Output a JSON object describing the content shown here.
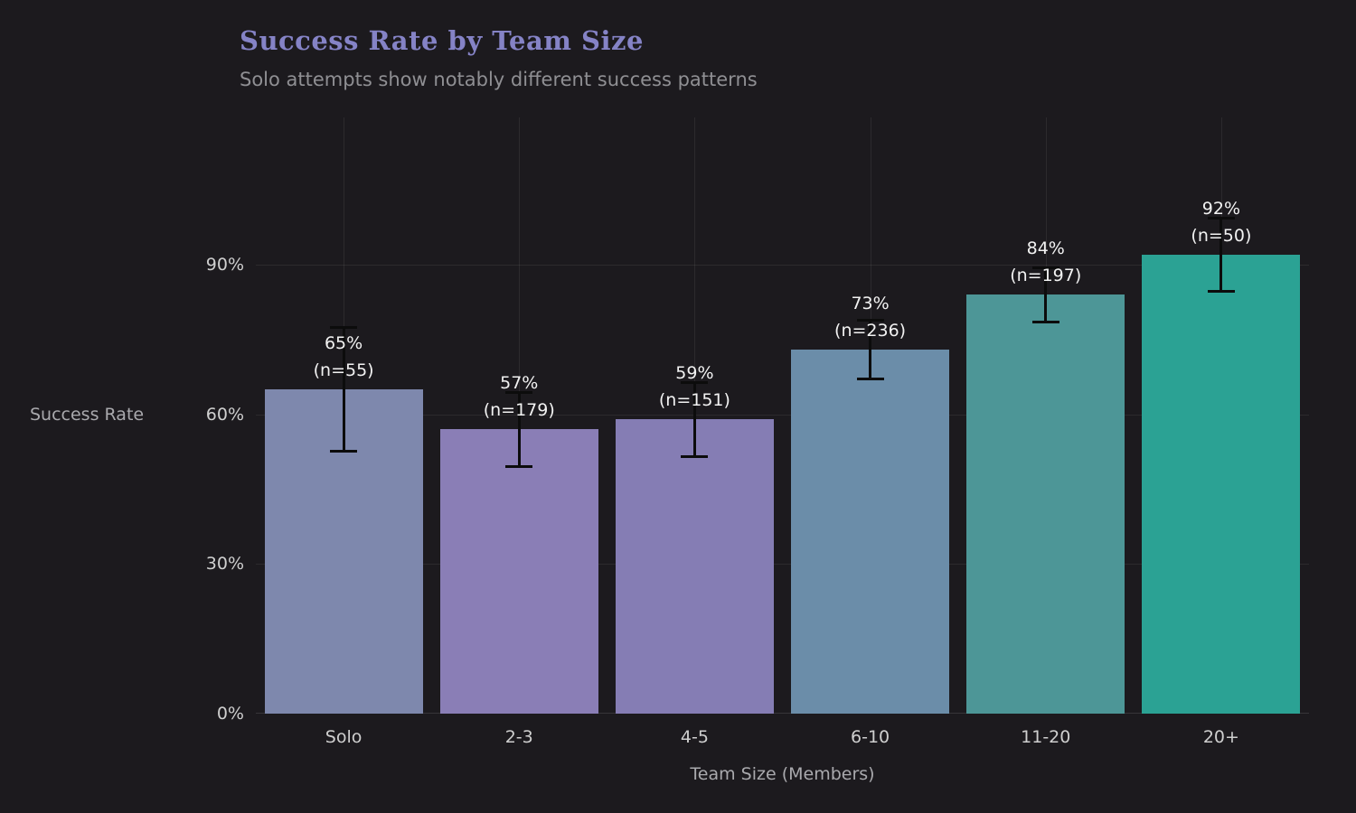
{
  "header": {
    "title": "Success Rate by Team Size",
    "subtitle": "Solo attempts show notably different success patterns"
  },
  "chart_data": {
    "type": "bar",
    "title": "Success Rate by Team Size",
    "subtitle": "Solo attempts show notably different success patterns",
    "categories": [
      "Solo",
      "2-3",
      "4-5",
      "6-10",
      "11-20",
      "20+"
    ],
    "values": [
      65,
      57,
      59,
      73,
      84,
      92
    ],
    "errors": [
      12.5,
      7.5,
      7.5,
      6,
      5.5,
      7.5
    ],
    "counts": [
      55,
      179,
      151,
      236,
      197,
      50
    ],
    "value_labels": [
      "65%",
      "57%",
      "59%",
      "73%",
      "84%",
      "92%"
    ],
    "n_labels": [
      "(n=55)",
      "(n=179)",
      "(n=151)",
      "(n=236)",
      "(n=197)",
      "(n=50)"
    ],
    "bar_colors": [
      "#7e88ad",
      "#8a7eb6",
      "#857db4",
      "#6b8da9",
      "#4d9697",
      "#2ba294"
    ],
    "error_bar_color": "#0c0c0c",
    "xlabel": "Team Size (Members)",
    "ylabel": "Success Rate",
    "yticks": [
      0,
      30,
      60,
      90
    ],
    "ytick_labels": [
      "0%",
      "30%",
      "60%",
      "90%"
    ],
    "ylim": [
      0,
      119.5
    ],
    "grid": true,
    "legend": false,
    "background_color": "#1c1a1e"
  }
}
